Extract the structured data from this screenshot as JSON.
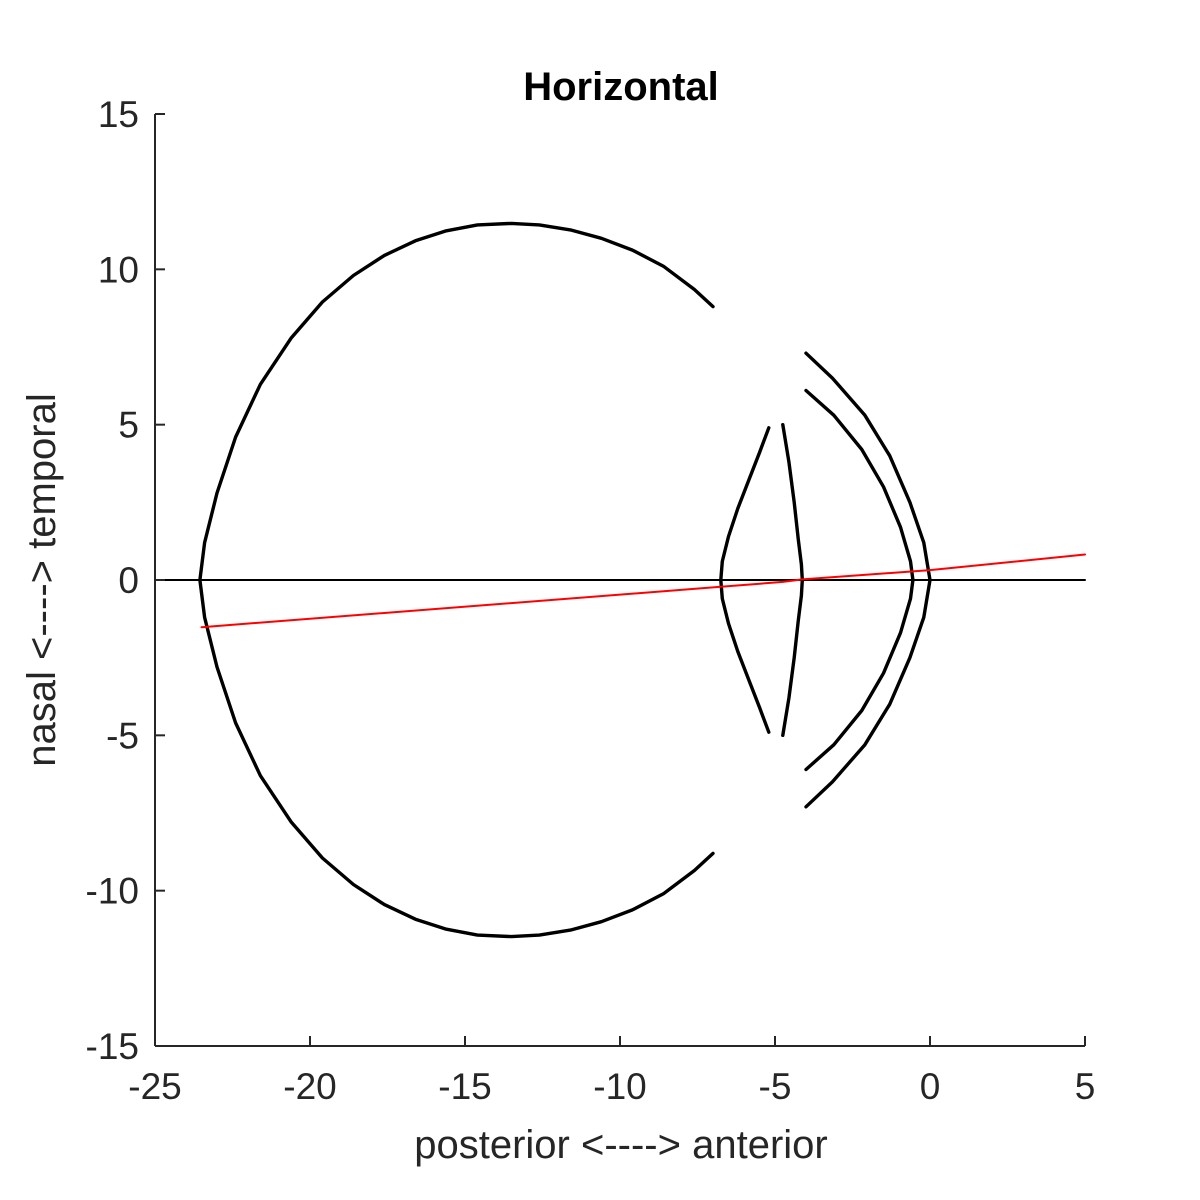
{
  "chart_data": {
    "type": "line",
    "title": "Horizontal",
    "xlabel": "posterior <----> anterior",
    "ylabel": "nasal <----> temporal",
    "xlim": [
      -25,
      5
    ],
    "ylim": [
      -15,
      15
    ],
    "xticks": [
      -25,
      -20,
      -15,
      -10,
      -5,
      0,
      5
    ],
    "yticks": [
      -15,
      -10,
      -5,
      0,
      5,
      10,
      15
    ],
    "xtick_labels": [
      "-25",
      "-20",
      "-15",
      "-10",
      "-5",
      "0",
      "5"
    ],
    "ytick_labels": [
      "-15",
      "-10",
      "-5",
      "0",
      "5",
      "10",
      "15"
    ],
    "grid": false,
    "series": [
      {
        "color": "#000000",
        "x": [
          -7.0,
          -7.6,
          -8.6,
          -9.6,
          -10.6,
          -11.6,
          -12.6,
          -13.5,
          -14.6,
          -15.6,
          -16.6,
          -17.6,
          -18.6,
          -19.6,
          -20.6,
          -21.6,
          -22.4,
          -23.0,
          -23.4,
          -23.55,
          -23.4,
          -23.0,
          -22.4,
          -21.6,
          -20.6,
          -19.6,
          -18.6,
          -17.6,
          -16.6,
          -15.6,
          -14.6,
          -13.5,
          -12.6,
          -11.6,
          -10.6,
          -9.6,
          -8.6,
          -7.6,
          -7.0
        ],
        "y": [
          8.8,
          9.35,
          10.1,
          10.62,
          11.0,
          11.27,
          11.43,
          11.48,
          11.43,
          11.24,
          10.92,
          10.45,
          9.8,
          8.95,
          7.8,
          6.3,
          4.6,
          2.8,
          1.2,
          0.0,
          -1.2,
          -2.8,
          -4.6,
          -6.3,
          -7.8,
          -8.95,
          -9.8,
          -10.45,
          -10.92,
          -11.24,
          -11.43,
          -11.48,
          -11.43,
          -11.27,
          -11.0,
          -10.62,
          -10.1,
          -9.35,
          -8.8
        ]
      },
      {
        "color": "#000000",
        "x": [
          -4.0,
          -3.15,
          -2.1,
          -1.3,
          -0.65,
          -0.2,
          0.0,
          -0.2,
          -0.65,
          -1.3,
          -2.1,
          -3.15,
          -4.0
        ],
        "y": [
          7.3,
          6.5,
          5.3,
          4.0,
          2.5,
          1.2,
          0.0,
          -1.2,
          -2.5,
          -4.0,
          -5.3,
          -6.5,
          -7.3
        ]
      },
      {
        "color": "#000000",
        "x": [
          -4.0,
          -3.1,
          -2.2,
          -1.5,
          -0.95,
          -0.63,
          -0.55,
          -0.63,
          -0.95,
          -1.5,
          -2.2,
          -3.1,
          -4.0
        ],
        "y": [
          6.1,
          5.3,
          4.2,
          3.0,
          1.7,
          0.6,
          0.0,
          -0.6,
          -1.7,
          -3.0,
          -4.2,
          -5.3,
          -6.1
        ]
      },
      {
        "color": "#000000",
        "x": [
          -5.2,
          -5.5,
          -5.85,
          -6.2,
          -6.5,
          -6.7,
          -6.75,
          -6.7,
          -6.5,
          -6.2,
          -5.85,
          -5.5,
          -5.2
        ],
        "y": [
          4.9,
          4.1,
          3.2,
          2.3,
          1.4,
          0.6,
          0.0,
          -0.6,
          -1.4,
          -2.3,
          -3.2,
          -4.1,
          -4.9
        ]
      },
      {
        "color": "#000000",
        "x": [
          -4.75,
          -4.55,
          -4.38,
          -4.25,
          -4.15,
          -4.12,
          -4.15,
          -4.25,
          -4.38,
          -4.55,
          -4.75
        ],
        "y": [
          5.0,
          3.8,
          2.5,
          1.3,
          0.5,
          0.0,
          -0.5,
          -1.3,
          -2.5,
          -3.8,
          -5.0
        ]
      },
      {
        "color": "#000000",
        "x": [
          -24.8,
          5.0
        ],
        "y": [
          0.0,
          0.0
        ]
      },
      {
        "color": "#ff0000",
        "x": [
          -23.5,
          -6.75,
          -4.75,
          -4.12,
          0.0,
          5.0
        ],
        "y": [
          -1.52,
          -0.22,
          -0.06,
          0.02,
          0.32,
          0.82
        ]
      }
    ]
  }
}
